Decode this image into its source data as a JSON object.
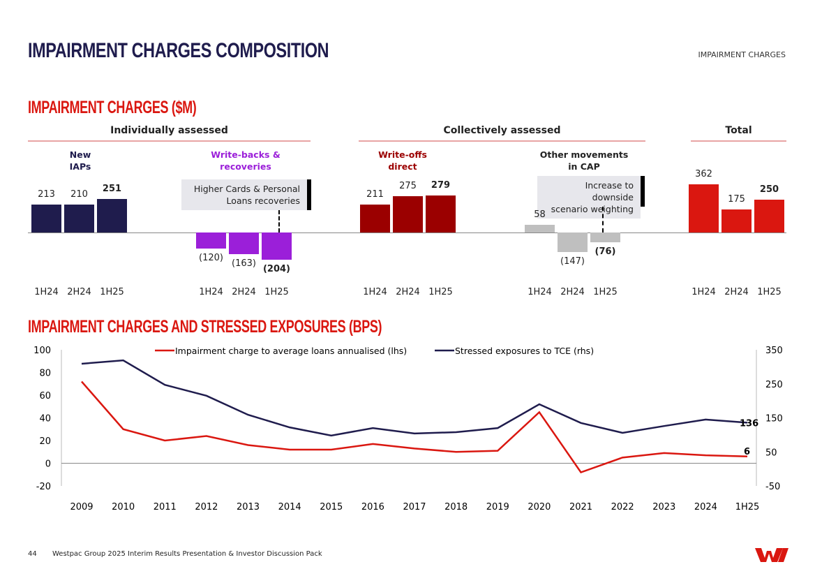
{
  "header": {
    "title": "IMPAIRMENT CHARGES COMPOSITION",
    "section": "IMPAIRMENT CHARGES"
  },
  "footer": {
    "page": "44",
    "text": "Westpac Group 2025 Interim Results Presentation & Investor Discussion Pack"
  },
  "colors": {
    "navy": "#1f1c4d",
    "purple": "#9b1fd9",
    "dark_red": "#9b0000",
    "grey": "#bfbfbf",
    "red": "#da1710"
  },
  "chart_data": [
    {
      "type": "bar",
      "title": "IMPAIRMENT CHARGES ($M)",
      "groups": [
        {
          "label": "Individually assessed"
        },
        {
          "label": "Collectively assessed"
        },
        {
          "label": "Total"
        }
      ],
      "categories": [
        "1H24",
        "2H24",
        "1H25"
      ],
      "series": [
        {
          "name": "New IAPs",
          "group": "Individually assessed",
          "color": "#1f1c4d",
          "values": [
            213,
            210,
            251
          ],
          "labels": [
            "213",
            "210",
            "251"
          ]
        },
        {
          "name": "Write-backs & recoveries",
          "group": "Individually assessed",
          "color": "#9b1fd9",
          "values": [
            -120,
            -163,
            -204
          ],
          "labels": [
            "(120)",
            "(163)",
            "(204)"
          ]
        },
        {
          "name": "Write-offs direct",
          "group": "Collectively assessed",
          "color": "#9b0000",
          "values": [
            211,
            275,
            279
          ],
          "labels": [
            "211",
            "275",
            "279"
          ]
        },
        {
          "name": "Other movements in CAP",
          "group": "Collectively assessed",
          "color": "#bfbfbf",
          "values": [
            58,
            -147,
            -76
          ],
          "labels": [
            "58",
            "(147)",
            "(76)"
          ]
        },
        {
          "name": "",
          "group": "Total",
          "color": "#da1710",
          "values": [
            362,
            175,
            250
          ],
          "labels": [
            "362",
            "175",
            "250"
          ]
        }
      ],
      "series_titles": [
        [
          "New",
          "IAPs"
        ],
        [
          "Write-backs &",
          "recoveries"
        ],
        [
          "Write-offs",
          "direct"
        ],
        [
          "Other movements",
          "in CAP"
        ]
      ],
      "annotations": [
        {
          "series": "Write-backs & recoveries",
          "category": "1H25",
          "lines": [
            "Higher Cards & Personal",
            "Loans recoveries"
          ]
        },
        {
          "series": "Other movements in CAP",
          "category": "1H25",
          "lines": [
            "Increase to downside",
            "scenario weighting"
          ]
        }
      ]
    },
    {
      "type": "line",
      "title": "IMPAIRMENT CHARGES AND STRESSED EXPOSURES (BPS)",
      "x": [
        "2009",
        "2010",
        "2011",
        "2012",
        "2013",
        "2014",
        "2015",
        "2016",
        "2017",
        "2018",
        "2019",
        "2020",
        "2021",
        "2022",
        "2023",
        "2024",
        "1H25"
      ],
      "ylim_left": [
        -20,
        100
      ],
      "yticks_left": [
        "100",
        "80",
        "60",
        "40",
        "20",
        "0",
        "-20"
      ],
      "ylim_right": [
        -50,
        350
      ],
      "yticks_right": [
        "350",
        "250",
        "150",
        "50",
        "-50"
      ],
      "legend": "top",
      "series": [
        {
          "name": "Impairment charge to average loans annualised (lhs)",
          "axis": "left",
          "color": "#da1710",
          "values": [
            72,
            30,
            20,
            24,
            16,
            12,
            12,
            17,
            13,
            10,
            11,
            45,
            -8,
            5,
            9,
            7,
            6
          ],
          "end_label": "6"
        },
        {
          "name": "Stressed exposures to TCE (rhs)",
          "axis": "right",
          "color": "#1f1c4d",
          "values": [
            309,
            319,
            247,
            215,
            159,
            122,
            98,
            120,
            104,
            108,
            120,
            190,
            135,
            106,
            126,
            145,
            136
          ],
          "end_label": "136"
        }
      ]
    }
  ]
}
